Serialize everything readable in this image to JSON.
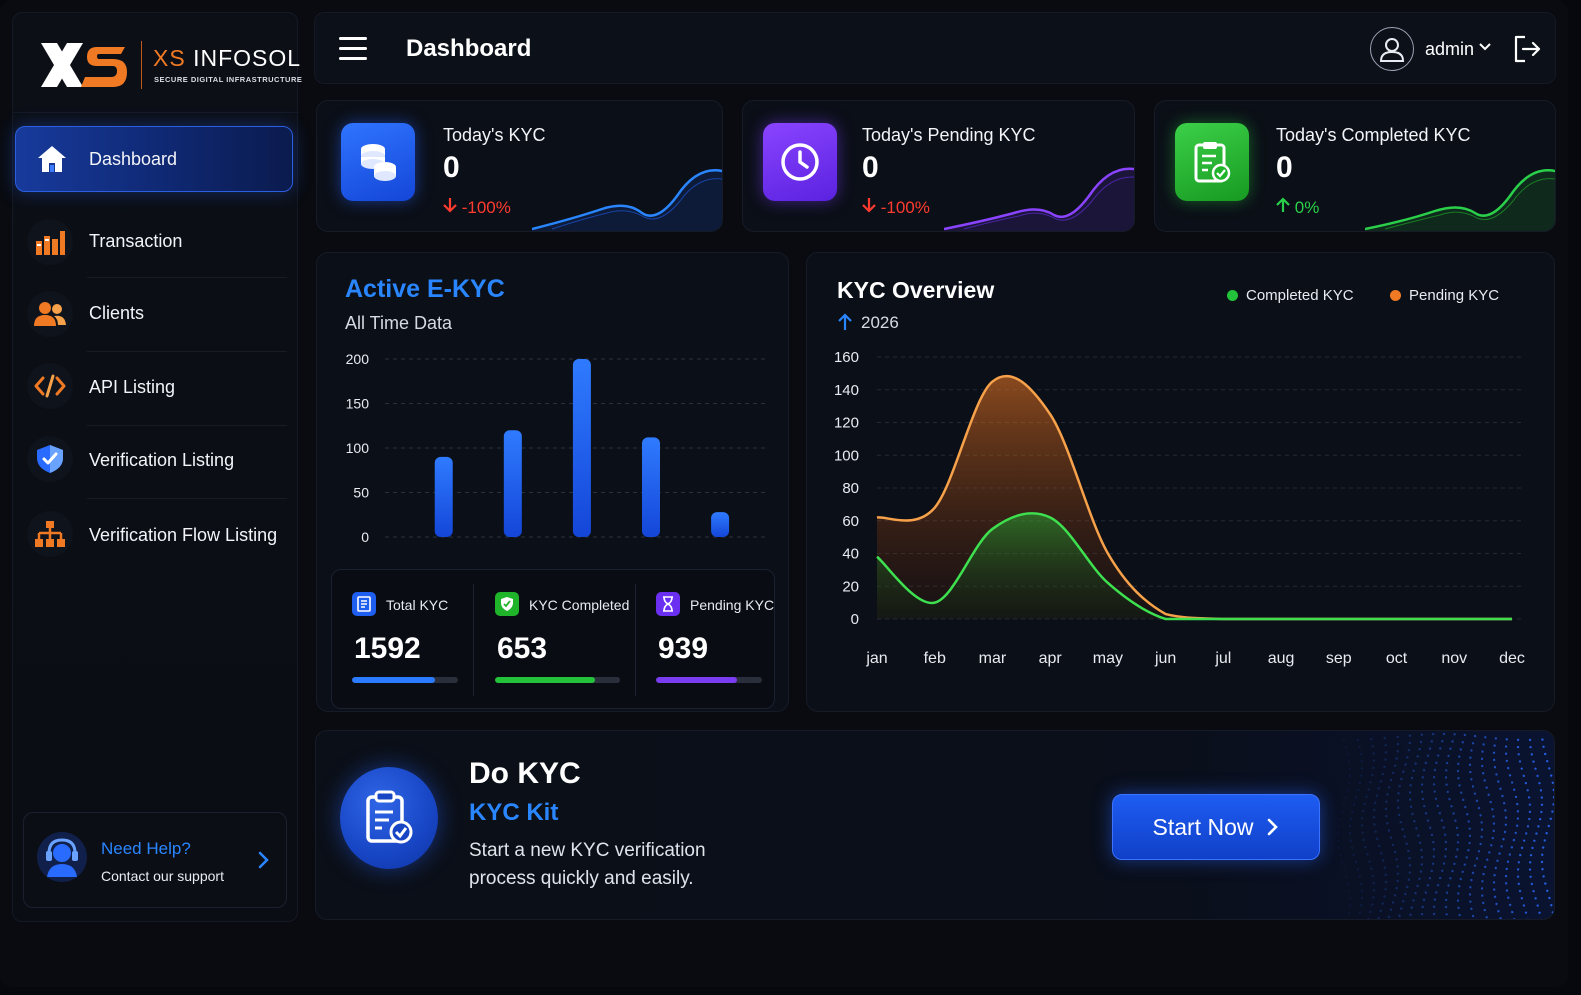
{
  "brand": {
    "name_prefix": "XS",
    "name_suffix": "INFOSOL",
    "tagline": "SECURE DIGITAL INFRASTRUCTURE"
  },
  "sidebar": {
    "items": [
      {
        "label": "Dashboard",
        "icon": "home-icon",
        "active": true
      },
      {
        "label": "Transaction",
        "icon": "bar-chart-icon"
      },
      {
        "label": "Clients",
        "icon": "users-icon"
      },
      {
        "label": "API Listing",
        "icon": "code-icon"
      },
      {
        "label": "Verification Listing",
        "icon": "shield-check-icon"
      },
      {
        "label": "Verification Flow Listing",
        "icon": "hierarchy-icon"
      }
    ],
    "help": {
      "title": "Need Help?",
      "subtitle": "Contact our support"
    }
  },
  "header": {
    "title": "Dashboard",
    "user": "admin"
  },
  "stats": [
    {
      "title": "Today's KYC",
      "value": "0",
      "change": "-100%",
      "trend": "down",
      "color": "#1f5ff0",
      "icon": "coins-icon"
    },
    {
      "title": "Today's Pending KYC",
      "value": "0",
      "change": "-100%",
      "trend": "down",
      "color": "#6a2ff0",
      "icon": "clock-icon"
    },
    {
      "title": "Today's Completed KYC",
      "value": "0",
      "change": "0%",
      "trend": "up",
      "color": "#1fb42a",
      "icon": "clipboard-check-icon"
    }
  ],
  "active_ekyc": {
    "title": "Active E-KYC",
    "subtitle": "All Time Data",
    "summary": [
      {
        "label": "Total KYC",
        "value": "1592",
        "progress": 0.78,
        "color": "#2a7bff",
        "icon": "document-icon"
      },
      {
        "label": "KYC Completed",
        "value": "653",
        "progress": 0.8,
        "color": "#22c23a",
        "icon": "shield-check-icon"
      },
      {
        "label": "Pending KYC",
        "value": "939",
        "progress": 0.76,
        "color": "#7a3cf0",
        "icon": "hourglass-icon"
      }
    ]
  },
  "kyc_overview": {
    "title": "KYC Overview",
    "year": "2026",
    "legend": [
      "Completed KYC",
      "Pending KYC"
    ]
  },
  "banner": {
    "title": "Do KYC",
    "subtitle": "KYC Kit",
    "description": "Start a new KYC verification process quickly and easily.",
    "button": "Start Now"
  },
  "colors": {
    "accent": "#2a86ff",
    "completed": "#22c23a",
    "pending": "#f07a24",
    "down": "#ff3b30",
    "up": "#2ad04a"
  },
  "chart_data": [
    {
      "type": "bar",
      "categories": [
        "",
        "",
        "",
        "",
        ""
      ],
      "values": [
        90,
        120,
        200,
        112,
        28
      ],
      "ylim": [
        0,
        200
      ],
      "yticks": [
        0,
        50,
        100,
        150,
        200
      ],
      "grid": true
    },
    {
      "type": "area",
      "title": "KYC Overview",
      "x": [
        "jan",
        "feb",
        "mar",
        "apr",
        "may",
        "jun",
        "jul",
        "aug",
        "sep",
        "oct",
        "nov",
        "dec"
      ],
      "series": [
        {
          "name": "Completed KYC",
          "values": [
            38,
            10,
            55,
            62,
            22,
            0,
            0,
            0,
            0,
            0,
            0,
            0
          ]
        },
        {
          "name": "Pending KYC",
          "values": [
            62,
            68,
            145,
            125,
            40,
            3,
            0,
            0,
            0,
            0,
            0,
            0
          ]
        }
      ],
      "ylim": [
        0,
        160
      ],
      "yticks": [
        0,
        20,
        40,
        60,
        80,
        100,
        120,
        140,
        160
      ],
      "legend": "top-right",
      "grid": true
    }
  ]
}
